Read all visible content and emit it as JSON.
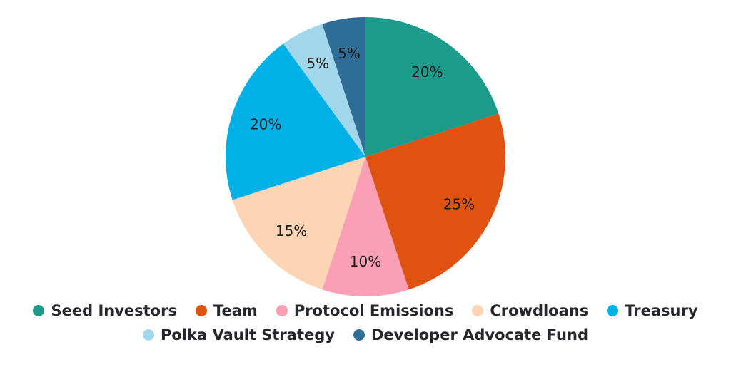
{
  "chart_data": {
    "type": "pie",
    "title": "",
    "legend_position": "bottom",
    "legend_row_split": 5,
    "start_at_deg": 0,
    "direction": "clockwise",
    "percent_label_color": "#1c1c1c",
    "legend_text_color": "#26262c",
    "background_color": "#ffffff",
    "slices": [
      {
        "label": "Seed Investors",
        "value": 20,
        "pct_label": "20%",
        "color": "#1d9b8a"
      },
      {
        "label": "Team",
        "value": 25,
        "pct_label": "25%",
        "color": "#e0520f"
      },
      {
        "label": "Protocol Emissions",
        "value": 10,
        "pct_label": "10%",
        "color": "#fa9fb5"
      },
      {
        "label": "Crowdloans",
        "value": 15,
        "pct_label": "15%",
        "color": "#fdd5b4"
      },
      {
        "label": "Treasury",
        "value": 20,
        "pct_label": "20%",
        "color": "#00b1e8"
      },
      {
        "label": "Polka Vault Strategy",
        "value": 5,
        "pct_label": "5%",
        "color": "#a2d6ea"
      },
      {
        "label": "Developer Advocate Fund",
        "value": 5,
        "pct_label": "5%",
        "color": "#2e6e96"
      }
    ]
  }
}
